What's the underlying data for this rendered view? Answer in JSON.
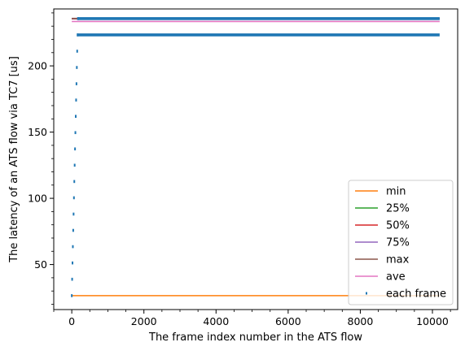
{
  "chart_data": {
    "type": "line",
    "title": "",
    "xlabel": "The frame index number in the ATS flow",
    "ylabel": "The latency of an ATS flow via TC7 [us]",
    "xlim": [
      -500,
      10700
    ],
    "ylim": [
      16,
      243
    ],
    "xticks": [
      0,
      2000,
      4000,
      6000,
      8000,
      10000
    ],
    "yticks": [
      50,
      100,
      150,
      200
    ],
    "grid": false,
    "legend_position": "lower-right",
    "series": [
      {
        "name": "min",
        "color": "#ff7f0e",
        "style": "line",
        "x": [
          0,
          10200
        ],
        "y": [
          26.5,
          26.5
        ]
      },
      {
        "name": "25%",
        "color": "#2ca02c",
        "style": "line",
        "x": [
          0,
          10200
        ],
        "y": [
          235.5,
          235.5
        ]
      },
      {
        "name": "50%",
        "color": "#d62728",
        "style": "line",
        "x": [
          0,
          10200
        ],
        "y": [
          235.6,
          235.6
        ]
      },
      {
        "name": "75%",
        "color": "#9467bd",
        "style": "line",
        "x": [
          0,
          10200
        ],
        "y": [
          235.7,
          235.7
        ]
      },
      {
        "name": "max",
        "color": "#8c564b",
        "style": "line",
        "x": [
          0,
          10200
        ],
        "y": [
          235.8,
          235.8
        ]
      },
      {
        "name": "ave",
        "color": "#e377c2",
        "style": "line",
        "x": [
          0,
          10200
        ],
        "y": [
          233.5,
          233.5
        ]
      },
      {
        "name": "each frame",
        "color": "#1f77b4",
        "style": "points",
        "ramp": {
          "x": [
            0,
            10,
            20,
            30,
            40,
            50,
            60,
            70,
            80,
            90,
            100,
            110,
            120,
            130,
            140,
            150,
            160,
            170
          ],
          "y": [
            26.5,
            38.9,
            51.2,
            63.5,
            75.8,
            88.1,
            100.4,
            112.7,
            125.0,
            137.3,
            149.6,
            161.9,
            174.2,
            186.5,
            198.8,
            211.1,
            223.4,
            235.7
          ]
        },
        "bands": [
          {
            "x_start": 150,
            "x_end": 10200,
            "y": 223.4
          },
          {
            "x_start": 170,
            "x_end": 10200,
            "y": 235.7
          }
        ]
      }
    ]
  }
}
